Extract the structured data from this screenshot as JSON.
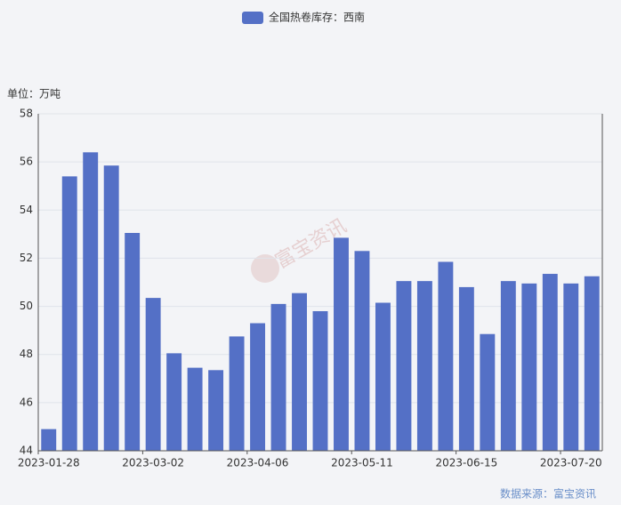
{
  "chart_data": {
    "type": "bar",
    "legend": "全国热卷库存：西南",
    "y_axis_label": "单位：万吨",
    "source": "数据来源：富宝资讯",
    "watermark": "富宝资讯",
    "color": "#5470c6",
    "categories": [
      "2023-01-28",
      null,
      null,
      null,
      null,
      "2023-03-02",
      null,
      null,
      null,
      null,
      "2023-04-06",
      null,
      null,
      null,
      null,
      "2023-05-11",
      null,
      null,
      null,
      null,
      "2023-06-15",
      null,
      null,
      null,
      null,
      "2023-07-20",
      null
    ],
    "values": [
      44.9,
      55.4,
      56.4,
      55.85,
      53.05,
      50.35,
      48.05,
      47.45,
      47.35,
      48.75,
      49.3,
      50.1,
      50.55,
      49.8,
      52.85,
      52.3,
      50.15,
      51.05,
      51.05,
      51.85,
      50.8,
      48.85,
      51.05,
      50.95,
      51.35,
      50.95,
      51.25
    ],
    "ylim": [
      44,
      58
    ],
    "yticks": [
      44,
      46,
      48,
      50,
      52,
      54,
      56,
      58
    ],
    "grid": true
  }
}
